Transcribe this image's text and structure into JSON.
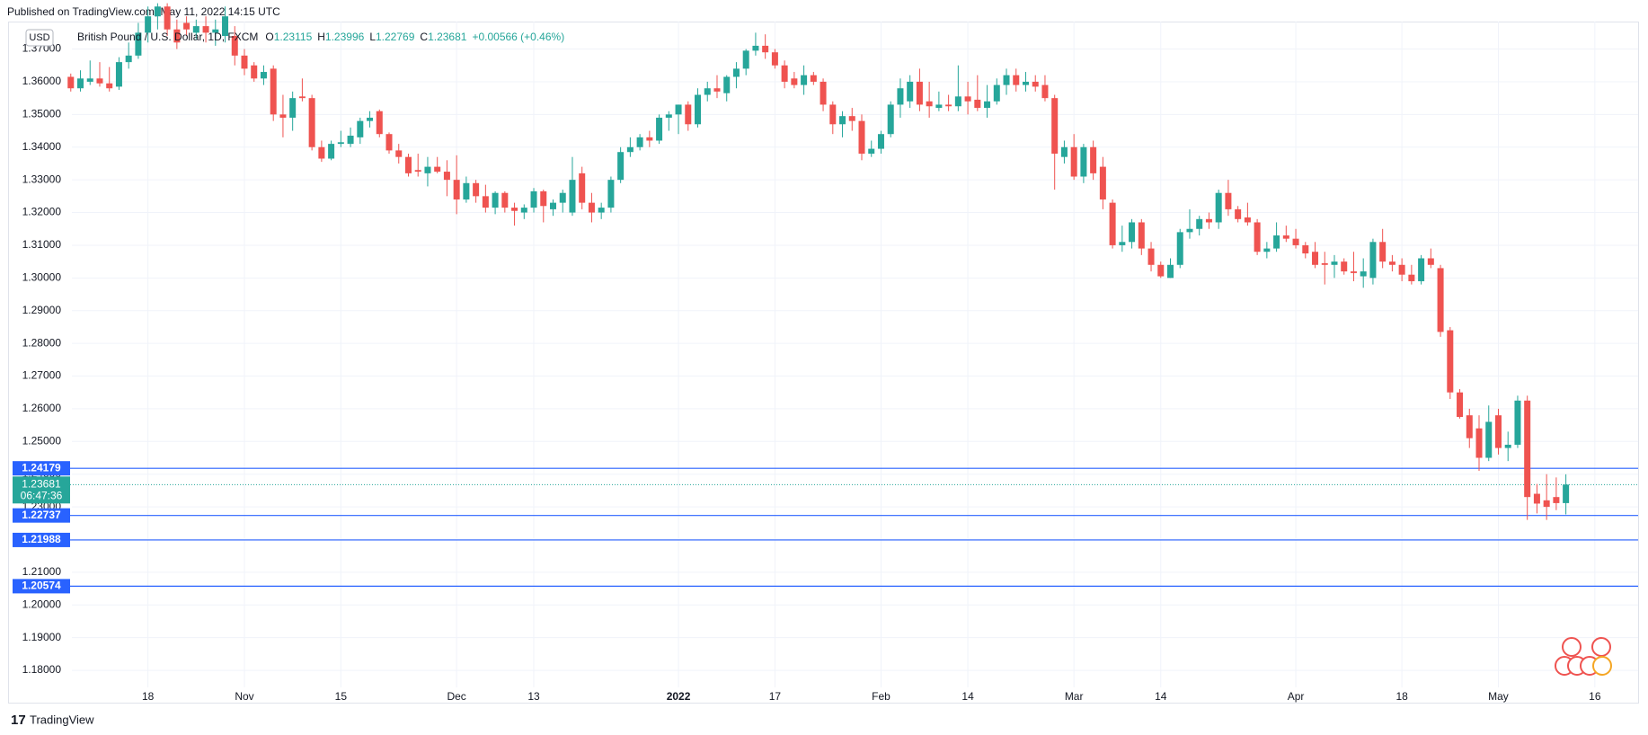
{
  "header": "Published on TradingView.com, May 11, 2022 14:15 UTC",
  "footer": "TradingView",
  "chart_data": {
    "type": "candlestick",
    "currency": "USD",
    "symbol": "British Pound / U.S. Dollar, 1D, FXCM",
    "legend_values": [
      {
        "label": "O",
        "value": 1.23115
      },
      {
        "label": "H",
        "value": 1.23996
      },
      {
        "label": "L",
        "value": 1.22769
      },
      {
        "label": "C",
        "value": 1.23681
      }
    ],
    "change": "+0.00566 (+0.46%)",
    "up_color": "#26a69a",
    "down_color": "#ef5350",
    "level_color": "#2962ff",
    "grid": true,
    "ylim": [
      1.1748,
      1.3784
    ],
    "yticks": [
      {
        "value": 1.18,
        "label": "1.18000"
      },
      {
        "value": 1.19,
        "label": "1.19000"
      },
      {
        "value": 1.2,
        "label": "1.20000"
      },
      {
        "value": 1.21,
        "label": "1.21000"
      },
      {
        "value": 1.22,
        "label": "1.22000"
      },
      {
        "value": 1.23,
        "label": "1.23000"
      },
      {
        "value": 1.24,
        "label": "1.24000"
      },
      {
        "value": 1.25,
        "label": "1.25000"
      },
      {
        "value": 1.26,
        "label": "1.26000"
      },
      {
        "value": 1.27,
        "label": "1.27000"
      },
      {
        "value": 1.28,
        "label": "1.28000"
      },
      {
        "value": 1.29,
        "label": "1.29000"
      },
      {
        "value": 1.3,
        "label": "1.30000"
      },
      {
        "value": 1.31,
        "label": "1.31000"
      },
      {
        "value": 1.32,
        "label": "1.32000"
      },
      {
        "value": 1.33,
        "label": "1.33000"
      },
      {
        "value": 1.34,
        "label": "1.34000"
      },
      {
        "value": 1.35,
        "label": "1.35000"
      },
      {
        "value": 1.36,
        "label": "1.36000"
      },
      {
        "value": 1.37,
        "label": "1.37000"
      }
    ],
    "xlim": [
      -6.5,
      159.6
    ],
    "xticks": [
      {
        "value": 8,
        "label": "18"
      },
      {
        "value": 18,
        "label": "Nov"
      },
      {
        "value": 28,
        "label": "15"
      },
      {
        "value": 40,
        "label": "Dec"
      },
      {
        "value": 48,
        "label": "13"
      },
      {
        "value": 63,
        "label": "2022"
      },
      {
        "value": 73,
        "label": "17"
      },
      {
        "value": 84,
        "label": "Feb"
      },
      {
        "value": 93,
        "label": "14"
      },
      {
        "value": 104,
        "label": "Mar"
      },
      {
        "value": 113,
        "label": "14"
      },
      {
        "value": 127,
        "label": "Apr"
      },
      {
        "value": 138,
        "label": "18"
      },
      {
        "value": 148,
        "label": "May"
      },
      {
        "value": 158,
        "label": "16"
      }
    ],
    "levels": [
      1.24179,
      1.22737,
      1.21988,
      1.20574
    ],
    "last_price": 1.23681,
    "countdown": "06:47:36",
    "ohlc": [
      [
        1.3615,
        1.3625,
        1.357,
        1.358
      ],
      [
        1.358,
        1.3635,
        1.357,
        1.361
      ],
      [
        1.36,
        1.3665,
        1.359,
        1.361
      ],
      [
        1.361,
        1.366,
        1.3585,
        1.3595
      ],
      [
        1.3595,
        1.3645,
        1.357,
        1.358
      ],
      [
        1.3585,
        1.3675,
        1.3575,
        1.366
      ],
      [
        1.366,
        1.372,
        1.364,
        1.368
      ],
      [
        1.368,
        1.378,
        1.367,
        1.375
      ],
      [
        1.375,
        1.383,
        1.372,
        1.38
      ],
      [
        1.38,
        1.384,
        1.376,
        1.383
      ],
      [
        1.383,
        1.384,
        1.374,
        1.376
      ],
      [
        1.376,
        1.379,
        1.37,
        1.372
      ],
      [
        1.378,
        1.38,
        1.374,
        1.376
      ],
      [
        1.375,
        1.379,
        1.373,
        1.377
      ],
      [
        1.377,
        1.38,
        1.372,
        1.375
      ],
      [
        1.375,
        1.379,
        1.371,
        1.376
      ],
      [
        1.374,
        1.383,
        1.372,
        1.38
      ],
      [
        1.374,
        1.377,
        1.365,
        1.368
      ],
      [
        1.368,
        1.37,
        1.362,
        1.364
      ],
      [
        1.365,
        1.366,
        1.36,
        1.361
      ],
      [
        1.361,
        1.365,
        1.359,
        1.363
      ],
      [
        1.364,
        1.365,
        1.348,
        1.35
      ],
      [
        1.35,
        1.356,
        1.343,
        1.349
      ],
      [
        1.349,
        1.357,
        1.345,
        1.355
      ],
      [
        1.3555,
        1.361,
        1.354,
        1.355
      ],
      [
        1.355,
        1.356,
        1.339,
        1.34
      ],
      [
        1.34,
        1.342,
        1.3355,
        1.3365
      ],
      [
        1.3365,
        1.342,
        1.336,
        1.341
      ],
      [
        1.341,
        1.345,
        1.34,
        1.3415
      ],
      [
        1.341,
        1.346,
        1.34,
        1.3435
      ],
      [
        1.343,
        1.349,
        1.341,
        1.348
      ],
      [
        1.348,
        1.351,
        1.346,
        1.349
      ],
      [
        1.351,
        1.3515,
        1.343,
        1.344
      ],
      [
        1.344,
        1.3445,
        1.338,
        1.339
      ],
      [
        1.339,
        1.341,
        1.335,
        1.337
      ],
      [
        1.337,
        1.338,
        1.331,
        1.332
      ],
      [
        1.333,
        1.338,
        1.331,
        1.3325
      ],
      [
        1.332,
        1.337,
        1.328,
        1.334
      ],
      [
        1.334,
        1.337,
        1.332,
        1.3325
      ],
      [
        1.3325,
        1.336,
        1.325,
        1.33
      ],
      [
        1.33,
        1.3375,
        1.3195,
        1.324
      ],
      [
        1.324,
        1.331,
        1.323,
        1.329
      ],
      [
        1.329,
        1.33,
        1.323,
        1.325
      ],
      [
        1.325,
        1.3285,
        1.32,
        1.3215
      ],
      [
        1.3215,
        1.3265,
        1.3195,
        1.326
      ],
      [
        1.326,
        1.3265,
        1.32,
        1.3215
      ],
      [
        1.3215,
        1.323,
        1.316,
        1.3205
      ],
      [
        1.32,
        1.3225,
        1.318,
        1.3215
      ],
      [
        1.3215,
        1.3275,
        1.32,
        1.3265
      ],
      [
        1.3265,
        1.327,
        1.317,
        1.322
      ],
      [
        1.321,
        1.324,
        1.319,
        1.323
      ],
      [
        1.323,
        1.327,
        1.32,
        1.326
      ],
      [
        1.32,
        1.337,
        1.319,
        1.33
      ],
      [
        1.332,
        1.334,
        1.321,
        1.323
      ],
      [
        1.323,
        1.326,
        1.317,
        1.32
      ],
      [
        1.32,
        1.323,
        1.318,
        1.3215
      ],
      [
        1.3215,
        1.331,
        1.32,
        1.33
      ],
      [
        1.33,
        1.34,
        1.329,
        1.3385
      ],
      [
        1.3385,
        1.343,
        1.337,
        1.34
      ],
      [
        1.34,
        1.344,
        1.339,
        1.343
      ],
      [
        1.343,
        1.345,
        1.34,
        1.342
      ],
      [
        1.342,
        1.35,
        1.341,
        1.349
      ],
      [
        1.349,
        1.351,
        1.345,
        1.35
      ],
      [
        1.35,
        1.353,
        1.344,
        1.353
      ],
      [
        1.353,
        1.354,
        1.345,
        1.347
      ],
      [
        1.347,
        1.358,
        1.346,
        1.356
      ],
      [
        1.356,
        1.36,
        1.354,
        1.358
      ],
      [
        1.358,
        1.362,
        1.355,
        1.357
      ],
      [
        1.3565,
        1.362,
        1.354,
        1.3615
      ],
      [
        1.3615,
        1.366,
        1.358,
        1.364
      ],
      [
        1.364,
        1.37,
        1.362,
        1.3695
      ],
      [
        1.3695,
        1.375,
        1.368,
        1.371
      ],
      [
        1.371,
        1.3745,
        1.367,
        1.369
      ],
      [
        1.369,
        1.37,
        1.364,
        1.365
      ],
      [
        1.365,
        1.3665,
        1.358,
        1.36
      ],
      [
        1.361,
        1.363,
        1.358,
        1.359
      ],
      [
        1.359,
        1.365,
        1.356,
        1.362
      ],
      [
        1.362,
        1.363,
        1.359,
        1.36
      ],
      [
        1.36,
        1.361,
        1.351,
        1.353
      ],
      [
        1.353,
        1.354,
        1.344,
        1.347
      ],
      [
        1.347,
        1.351,
        1.343,
        1.3495
      ],
      [
        1.3495,
        1.352,
        1.345,
        1.348
      ],
      [
        1.348,
        1.35,
        1.336,
        1.338
      ],
      [
        1.338,
        1.342,
        1.337,
        1.3395
      ],
      [
        1.3395,
        1.345,
        1.338,
        1.344
      ],
      [
        1.344,
        1.354,
        1.343,
        1.353
      ],
      [
        1.353,
        1.361,
        1.349,
        1.358
      ],
      [
        1.354,
        1.362,
        1.352,
        1.36
      ],
      [
        1.36,
        1.364,
        1.351,
        1.353
      ],
      [
        1.354,
        1.36,
        1.349,
        1.3525
      ],
      [
        1.352,
        1.357,
        1.351,
        1.353
      ],
      [
        1.353,
        1.356,
        1.351,
        1.3525
      ],
      [
        1.3525,
        1.365,
        1.351,
        1.3555
      ],
      [
        1.3555,
        1.36,
        1.35,
        1.354
      ],
      [
        1.3545,
        1.362,
        1.351,
        1.352
      ],
      [
        1.352,
        1.359,
        1.349,
        1.354
      ],
      [
        1.354,
        1.361,
        1.353,
        1.359
      ],
      [
        1.359,
        1.364,
        1.356,
        1.362
      ],
      [
        1.362,
        1.364,
        1.357,
        1.359
      ],
      [
        1.359,
        1.363,
        1.357,
        1.36
      ],
      [
        1.36,
        1.362,
        1.357,
        1.3585
      ],
      [
        1.359,
        1.362,
        1.354,
        1.355
      ],
      [
        1.355,
        1.356,
        1.327,
        1.338
      ],
      [
        1.337,
        1.342,
        1.335,
        1.34
      ],
      [
        1.34,
        1.344,
        1.33,
        1.331
      ],
      [
        1.331,
        1.341,
        1.329,
        1.34
      ],
      [
        1.34,
        1.342,
        1.33,
        1.332
      ],
      [
        1.334,
        1.337,
        1.321,
        1.324
      ],
      [
        1.323,
        1.324,
        1.309,
        1.31
      ],
      [
        1.31,
        1.316,
        1.308,
        1.311
      ],
      [
        1.311,
        1.318,
        1.309,
        1.317
      ],
      [
        1.317,
        1.318,
        1.307,
        1.309
      ],
      [
        1.309,
        1.311,
        1.302,
        1.304
      ],
      [
        1.304,
        1.305,
        1.3,
        1.3005
      ],
      [
        1.3,
        1.306,
        1.3,
        1.304
      ],
      [
        1.304,
        1.315,
        1.303,
        1.314
      ],
      [
        1.314,
        1.321,
        1.312,
        1.315
      ],
      [
        1.315,
        1.319,
        1.313,
        1.318
      ],
      [
        1.318,
        1.32,
        1.315,
        1.317
      ],
      [
        1.317,
        1.327,
        1.315,
        1.326
      ],
      [
        1.326,
        1.33,
        1.319,
        1.321
      ],
      [
        1.321,
        1.322,
        1.317,
        1.318
      ],
      [
        1.3185,
        1.323,
        1.316,
        1.317
      ],
      [
        1.317,
        1.318,
        1.307,
        1.308
      ],
      [
        1.308,
        1.311,
        1.306,
        1.309
      ],
      [
        1.309,
        1.317,
        1.308,
        1.313
      ],
      [
        1.313,
        1.316,
        1.311,
        1.312
      ],
      [
        1.312,
        1.315,
        1.309,
        1.31
      ],
      [
        1.31,
        1.311,
        1.306,
        1.3075
      ],
      [
        1.308,
        1.311,
        1.303,
        1.304
      ],
      [
        1.3045,
        1.308,
        1.298,
        1.304
      ],
      [
        1.304,
        1.307,
        1.3,
        1.305
      ],
      [
        1.305,
        1.306,
        1.301,
        1.302
      ],
      [
        1.302,
        1.308,
        1.299,
        1.3015
      ],
      [
        1.3005,
        1.306,
        1.297,
        1.302
      ],
      [
        1.3,
        1.312,
        1.298,
        1.311
      ],
      [
        1.311,
        1.315,
        1.303,
        1.305
      ],
      [
        1.305,
        1.307,
        1.302,
        1.304
      ],
      [
        1.304,
        1.306,
        1.299,
        1.301
      ],
      [
        1.301,
        1.304,
        1.298,
        1.299
      ],
      [
        1.299,
        1.307,
        1.298,
        1.306
      ],
      [
        1.306,
        1.309,
        1.303,
        1.304
      ],
      [
        1.303,
        1.304,
        1.282,
        1.2835
      ],
      [
        1.284,
        1.285,
        1.263,
        1.265
      ],
      [
        1.265,
        1.266,
        1.257,
        1.2575
      ],
      [
        1.258,
        1.26,
        1.248,
        1.251
      ],
      [
        1.254,
        1.258,
        1.241,
        1.245
      ],
      [
        1.245,
        1.261,
        1.244,
        1.256
      ],
      [
        1.258,
        1.26,
        1.246,
        1.248
      ],
      [
        1.248,
        1.253,
        1.244,
        1.249
      ],
      [
        1.249,
        1.264,
        1.248,
        1.2625
      ],
      [
        1.2625,
        1.264,
        1.226,
        1.233
      ],
      [
        1.234,
        1.237,
        1.228,
        1.231
      ],
      [
        1.232,
        1.24,
        1.226,
        1.23
      ],
      [
        1.233,
        1.239,
        1.229,
        1.23115
      ],
      [
        1.23115,
        1.23996,
        1.22769,
        1.23681
      ]
    ]
  }
}
